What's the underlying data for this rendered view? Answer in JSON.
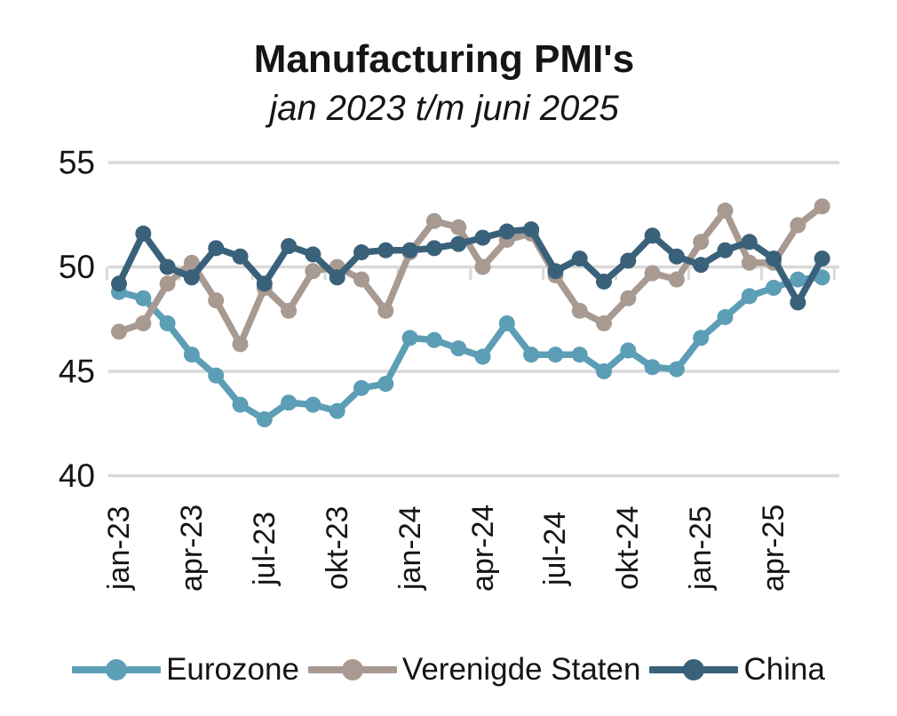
{
  "colors": {
    "eurozone": "#5C9EB5",
    "verenigde_staten": "#A89A91",
    "china": "#3A617A",
    "gridline": "#D9D9D9",
    "text": "#151515",
    "background": "#FFFFFF"
  },
  "chart_data": {
    "type": "line",
    "title": "Manufacturing PMI's",
    "subtitle": "jan 2023 t/m juni 2025",
    "xlabel": "",
    "ylabel": "",
    "ylim": [
      40,
      55
    ],
    "y_ticks": [
      55,
      50,
      45,
      40
    ],
    "grid": "horizontal",
    "axis_cross_value": 50,
    "legend_position": "bottom",
    "x": [
      "jan-23",
      "feb-23",
      "mrt-23",
      "apr-23",
      "mei-23",
      "jun-23",
      "jul-23",
      "aug-23",
      "sep-23",
      "okt-23",
      "nov-23",
      "dec-23",
      "jan-24",
      "feb-24",
      "mrt-24",
      "apr-24",
      "mei-24",
      "jun-24",
      "jul-24",
      "aug-24",
      "sep-24",
      "okt-24",
      "nov-24",
      "dec-24",
      "jan-25",
      "feb-25",
      "mrt-25",
      "apr-25",
      "mei-25",
      "jun-25"
    ],
    "x_tick_labels": [
      "jan-23",
      "apr-23",
      "jul-23",
      "okt-23",
      "jan-24",
      "apr-24",
      "jul-24",
      "okt-24",
      "jan-25",
      "apr-25"
    ],
    "x_tick_every": 3,
    "series": [
      {
        "name": "Eurozone",
        "color": "#5C9EB5",
        "values": [
          48.8,
          48.5,
          47.3,
          45.8,
          44.8,
          43.4,
          42.7,
          43.5,
          43.4,
          43.1,
          44.2,
          44.4,
          46.6,
          46.5,
          46.1,
          45.7,
          47.3,
          45.8,
          45.8,
          45.8,
          45.0,
          46.0,
          45.2,
          45.1,
          46.6,
          47.6,
          48.6,
          49.0,
          49.4,
          49.5
        ]
      },
      {
        "name": "Verenigde Staten",
        "color": "#A89A91",
        "values": [
          46.9,
          47.3,
          49.2,
          50.2,
          48.4,
          46.3,
          49.0,
          47.9,
          49.8,
          50.0,
          49.4,
          47.9,
          50.7,
          52.2,
          51.9,
          50.0,
          51.3,
          51.6,
          49.6,
          47.9,
          47.3,
          48.5,
          49.7,
          49.4,
          51.2,
          52.7,
          50.2,
          50.2,
          52.0,
          52.9
        ]
      },
      {
        "name": "China",
        "color": "#3A617A",
        "values": [
          49.2,
          51.6,
          50.0,
          49.5,
          50.9,
          50.5,
          49.2,
          51.0,
          50.6,
          49.5,
          50.7,
          50.8,
          50.8,
          50.9,
          51.1,
          51.4,
          51.7,
          51.8,
          49.8,
          50.4,
          49.3,
          50.3,
          51.5,
          50.5,
          50.1,
          50.8,
          51.2,
          50.4,
          48.3,
          50.4
        ]
      }
    ]
  }
}
